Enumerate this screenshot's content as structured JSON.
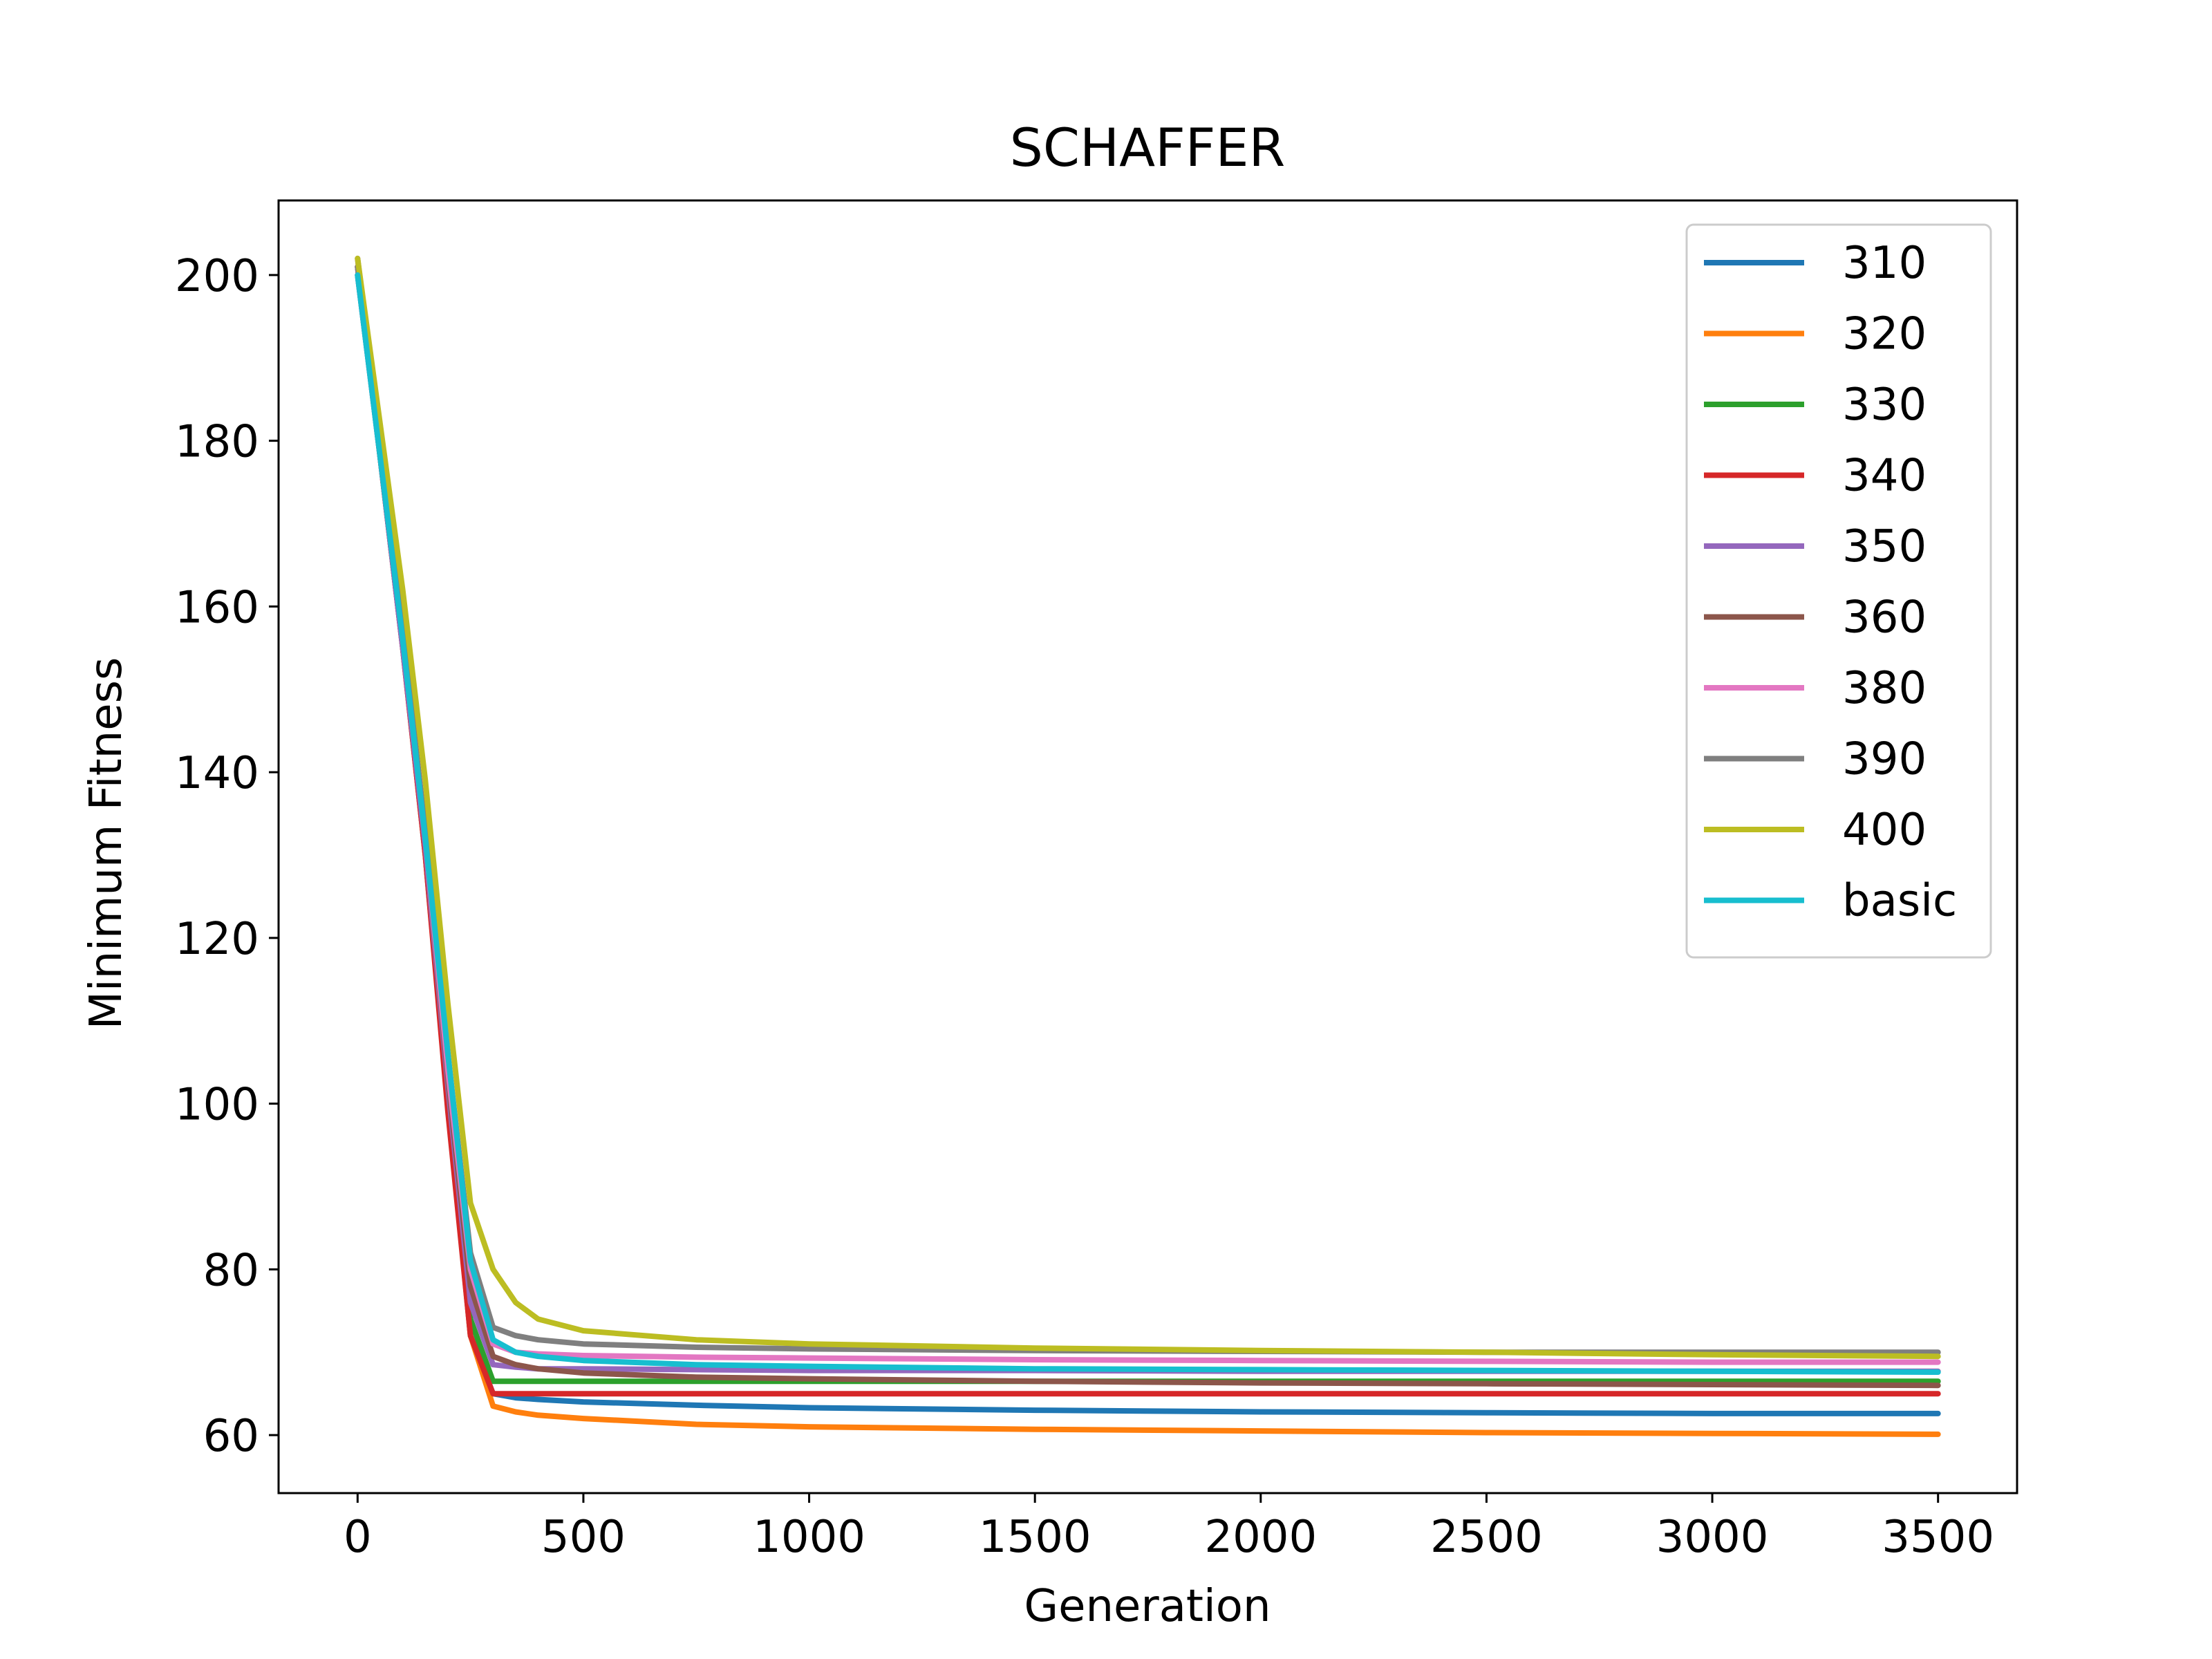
{
  "chart_data": {
    "type": "line",
    "title": "SCHAFFER",
    "xlabel": "Generation",
    "ylabel": "Minimum Fitness",
    "xlim": [
      -175,
      3675
    ],
    "ylim": [
      53,
      209
    ],
    "xticks": [
      0,
      500,
      1000,
      1500,
      2000,
      2500,
      3000,
      3500
    ],
    "yticks": [
      60,
      80,
      100,
      120,
      140,
      160,
      180,
      200
    ],
    "grid": false,
    "legend_position": "top-right",
    "x": [
      0,
      50,
      100,
      150,
      200,
      250,
      300,
      350,
      400,
      500,
      750,
      1000,
      1500,
      2000,
      2500,
      3000,
      3500
    ],
    "series": [
      {
        "name": "310",
        "color": "#1f77b4",
        "values": [
          200,
          178,
          155,
          130,
          100,
          72,
          65,
          64.5,
          64.3,
          64,
          63.6,
          63.3,
          63,
          62.8,
          62.7,
          62.6,
          62.6
        ]
      },
      {
        "name": "320",
        "color": "#ff7f0e",
        "values": [
          201,
          178,
          155,
          130,
          100,
          72,
          63.5,
          62.8,
          62.4,
          62,
          61.3,
          61,
          60.7,
          60.5,
          60.3,
          60.2,
          60.1
        ]
      },
      {
        "name": "330",
        "color": "#2ca02c",
        "values": [
          201,
          179,
          156,
          131,
          101,
          74,
          66.5,
          66.5,
          66.5,
          66.5,
          66.5,
          66.5,
          66.5,
          66.5,
          66.5,
          66.5,
          66.5
        ]
      },
      {
        "name": "340",
        "color": "#d62728",
        "values": [
          201,
          178,
          155,
          130,
          99,
          72,
          65,
          65,
          65,
          65,
          65,
          65,
          65,
          65,
          65,
          65,
          65
        ]
      },
      {
        "name": "350",
        "color": "#9467bd",
        "values": [
          200,
          178,
          155,
          131,
          102,
          76,
          68.5,
          68.2,
          68,
          68,
          67.9,
          67.8,
          67.8,
          67.7,
          67.7,
          67.7,
          67.7
        ]
      },
      {
        "name": "360",
        "color": "#8c564b",
        "values": [
          202,
          180,
          157,
          132,
          103,
          78,
          69.5,
          68.5,
          68,
          67.5,
          67,
          66.8,
          66.5,
          66.3,
          66.2,
          66.1,
          66
        ]
      },
      {
        "name": "380",
        "color": "#e377c2",
        "values": [
          201,
          179,
          156,
          132,
          104,
          80,
          71,
          70,
          69.8,
          69.6,
          69.4,
          69.3,
          69.1,
          69,
          68.9,
          68.8,
          68.8
        ]
      },
      {
        "name": "390",
        "color": "#7f7f7f",
        "values": [
          201,
          179,
          157,
          133,
          106,
          82,
          73,
          72,
          71.5,
          71,
          70.6,
          70.4,
          70.2,
          70.1,
          70,
          70,
          70
        ]
      },
      {
        "name": "400",
        "color": "#bcbd22",
        "values": [
          202,
          182,
          162,
          139,
          112,
          88,
          80,
          76,
          74,
          72.6,
          71.5,
          71,
          70.5,
          70.2,
          70,
          69.7,
          69.5
        ]
      },
      {
        "name": "basic",
        "color": "#17becf",
        "values": [
          200,
          178,
          156,
          132,
          106,
          81,
          71.5,
          70,
          69.5,
          69,
          68.5,
          68.3,
          68,
          67.9,
          67.8,
          67.7,
          67.6
        ]
      }
    ]
  }
}
